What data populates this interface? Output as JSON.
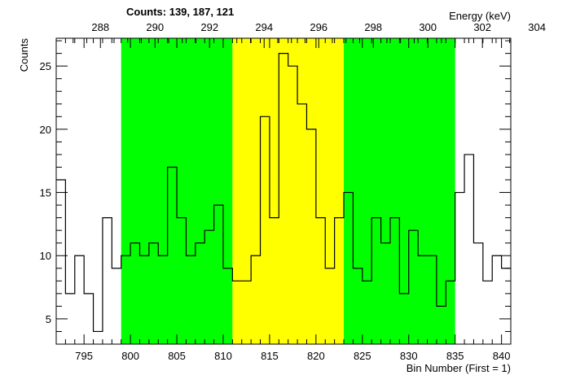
{
  "chart_data": {
    "type": "histogram",
    "counts_label": "Counts:   139,   187,   121",
    "xlabel": "Bin Number (First = 1)",
    "ylabel": "Counts",
    "x2label": "Energy (keV)",
    "xlim": [
      792,
      841
    ],
    "ylim": [
      3,
      27.2
    ],
    "x_ticks": [
      795,
      800,
      805,
      810,
      815,
      820,
      825,
      830,
      835,
      840
    ],
    "y_ticks": [
      5,
      10,
      15,
      20,
      25
    ],
    "x2_ticks": [
      288,
      290,
      292,
      294,
      296,
      298,
      300,
      302,
      304
    ],
    "energy_per_bin": 0.34,
    "energy_offset": 17.1,
    "regions": [
      {
        "name": "background-left",
        "from": 799,
        "to": 811,
        "color": "#00ff00"
      },
      {
        "name": "peak",
        "from": 811,
        "to": 823,
        "color": "#ffff00"
      },
      {
        "name": "background-right",
        "from": 823,
        "to": 835,
        "color": "#00ff00"
      }
    ],
    "bin_start": 792,
    "bin_width": 1,
    "values": [
      16,
      7,
      10,
      7,
      4,
      13,
      9,
      10,
      11,
      10,
      11,
      10,
      17,
      13,
      10,
      11,
      12,
      14,
      9,
      8,
      8,
      10,
      21,
      13,
      26,
      25,
      22,
      20,
      13,
      9,
      13,
      15,
      9,
      8,
      13,
      11,
      13,
      7,
      12,
      10,
      10,
      6,
      8,
      15,
      18,
      11,
      8,
      10,
      9
    ]
  }
}
